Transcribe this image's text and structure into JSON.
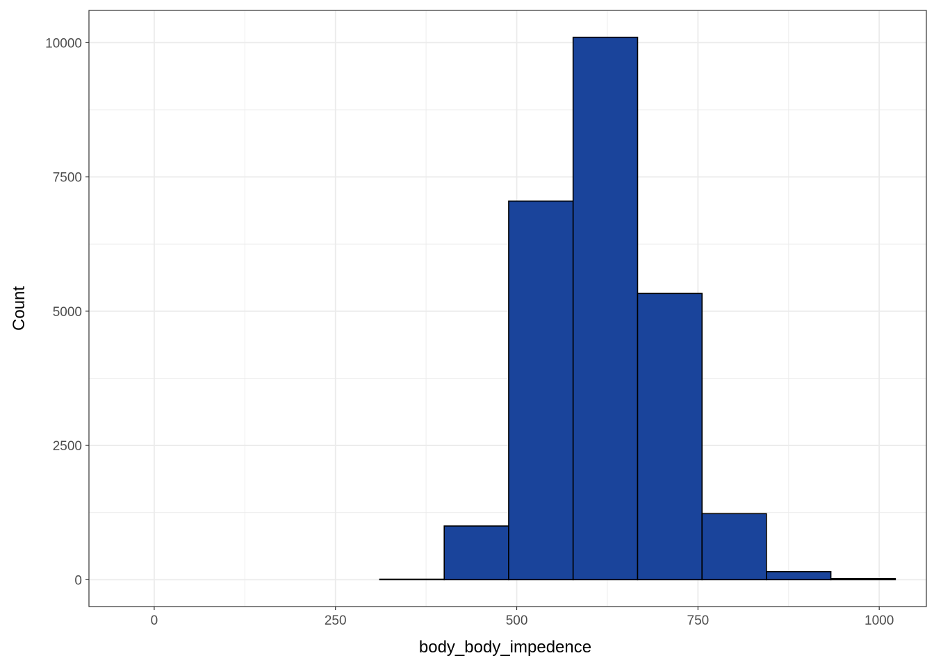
{
  "chart_data": {
    "type": "bar",
    "subtype": "histogram",
    "title": "",
    "xlabel": "body_body_impedence",
    "ylabel": "Count",
    "xlim": [
      -90,
      1065
    ],
    "ylim": [
      -500,
      10600
    ],
    "x_ticks": [
      0,
      250,
      500,
      750,
      1000
    ],
    "x_tick_labels": [
      "0",
      "250",
      "500",
      "750",
      "1000"
    ],
    "x_minor_ticks": [
      125,
      375,
      625,
      875
    ],
    "y_ticks": [
      0,
      2500,
      5000,
      7500,
      10000
    ],
    "y_tick_labels": [
      "0",
      "2500",
      "5000",
      "7500",
      "10000"
    ],
    "y_minor_ticks": [
      1250,
      3750,
      6250,
      8750
    ],
    "bins": [
      {
        "x0": -44.4,
        "x1": 44.4,
        "count": 0
      },
      {
        "x0": 44.4,
        "x1": 133.3,
        "count": 0
      },
      {
        "x0": 133.3,
        "x1": 222.2,
        "count": 0
      },
      {
        "x0": 222.2,
        "x1": 311.1,
        "count": 0
      },
      {
        "x0": 311.1,
        "x1": 400.0,
        "count": 10
      },
      {
        "x0": 400.0,
        "x1": 488.9,
        "count": 1000
      },
      {
        "x0": 488.9,
        "x1": 577.8,
        "count": 7050
      },
      {
        "x0": 577.8,
        "x1": 666.7,
        "count": 10100
      },
      {
        "x0": 666.7,
        "x1": 755.6,
        "count": 5330
      },
      {
        "x0": 755.6,
        "x1": 844.4,
        "count": 1230
      },
      {
        "x0": 844.4,
        "x1": 933.3,
        "count": 150
      },
      {
        "x0": 933.3,
        "x1": 1022.2,
        "count": 20
      }
    ],
    "grid": true,
    "theme": "bw",
    "colors": {
      "bar_fill": "#1a449b",
      "bar_outline": "#000000",
      "grid": "#ebebeb",
      "panel_border": "#333333"
    }
  }
}
